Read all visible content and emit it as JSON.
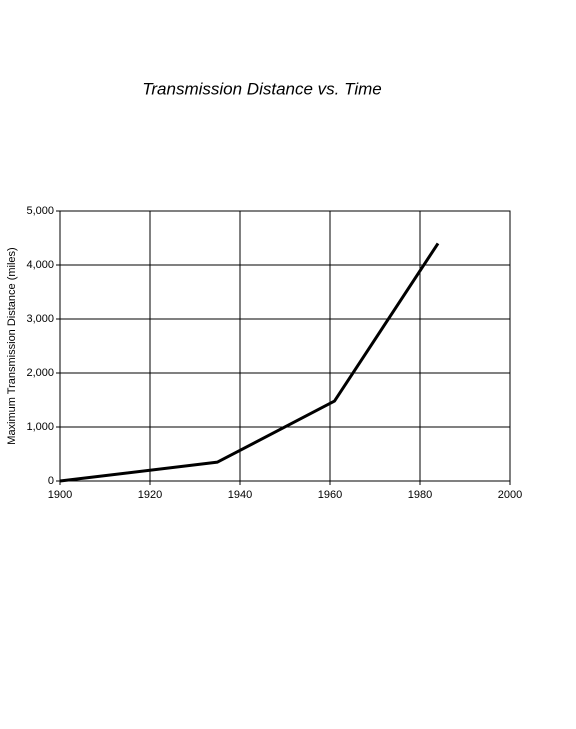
{
  "chart_data": {
    "type": "line",
    "title": "Transmission Distance vs. Time",
    "y_label": "Maximum Transmission Distance (miles)",
    "x": [
      1900,
      1935,
      1961,
      1984
    ],
    "series": [
      {
        "color": "#000000",
        "values": [
          0,
          350,
          1480,
          4400
        ]
      }
    ],
    "xlim": [
      1900,
      2000
    ],
    "xticks": [
      1900,
      1920,
      1940,
      1960,
      1980,
      2000
    ],
    "ylim": [
      0,
      5000
    ],
    "yticks": [
      0,
      {
        "value": 1000,
        "label": "1,000"
      },
      {
        "value": 2000,
        "label": "2,000"
      },
      {
        "value": 3000,
        "label": "3,000"
      },
      {
        "value": 4000,
        "label": "4,000"
      },
      {
        "value": 5000,
        "label": "5,000"
      }
    ],
    "grid": true
  }
}
